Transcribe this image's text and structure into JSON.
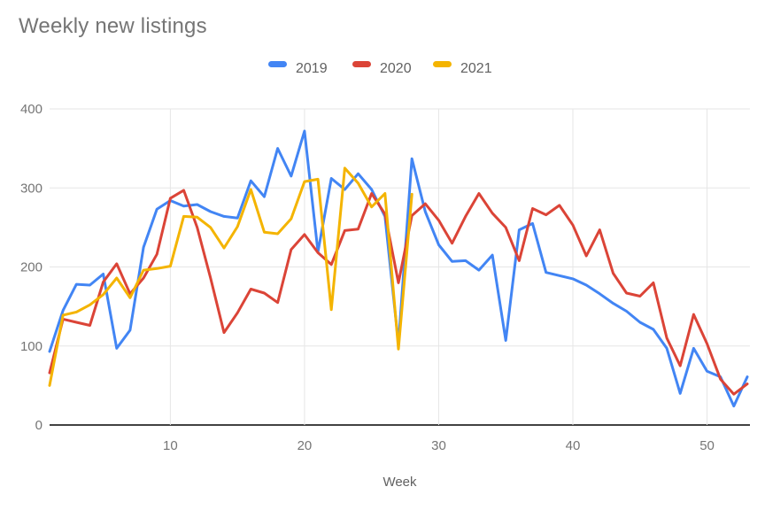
{
  "title": "Weekly new listings",
  "chart_data": {
    "type": "line",
    "title": "Weekly new listings",
    "xlabel": "Week",
    "ylabel": "",
    "x_min": 1,
    "x_step": 1,
    "x_max": 53,
    "ylim": [
      0,
      400
    ],
    "y_ticks": [
      0,
      100,
      200,
      300,
      400
    ],
    "x_ticks": [
      10,
      20,
      30,
      40,
      50
    ],
    "grid": true,
    "legend_position": "top",
    "series": [
      {
        "name": "2019",
        "color": "#4285F4",
        "values": [
          93,
          145,
          178,
          177,
          191,
          97,
          120,
          225,
          273,
          284,
          277,
          279,
          270,
          264,
          262,
          309,
          289,
          350,
          315,
          372,
          219,
          312,
          298,
          318,
          298,
          264,
          103,
          337,
          270,
          228,
          207,
          208,
          196,
          215,
          107,
          247,
          255,
          193,
          189,
          185,
          177,
          166,
          154,
          144,
          130,
          121,
          97,
          40,
          97,
          68,
          61,
          24,
          61
        ]
      },
      {
        "name": "2020",
        "color": "#DB4437",
        "values": [
          66,
          134,
          130,
          126,
          181,
          204,
          166,
          186,
          216,
          287,
          297,
          250,
          186,
          117,
          142,
          172,
          167,
          155,
          222,
          241,
          218,
          203,
          246,
          248,
          293,
          267,
          180,
          265,
          280,
          259,
          230,
          264,
          293,
          268,
          250,
          208,
          274,
          266,
          278,
          253,
          214,
          247,
          192,
          167,
          163,
          180,
          110,
          75,
          140,
          103,
          58,
          39,
          52
        ]
      },
      {
        "name": "2021",
        "color": "#F4B400",
        "values": [
          50,
          139,
          143,
          152,
          165,
          186,
          161,
          196,
          198,
          201,
          264,
          263,
          250,
          224,
          251,
          298,
          244,
          242,
          261,
          308,
          311,
          146,
          325,
          306,
          276,
          293,
          96,
          292
        ]
      }
    ]
  },
  "colors": {
    "series_2019": "#4285F4",
    "series_2020": "#DB4437",
    "series_2021": "#F4B400",
    "gridline": "#e6e6e6",
    "axis_line": "#424242",
    "title_text": "#757575",
    "tick_text": "#757575",
    "legend_text": "#616161"
  }
}
